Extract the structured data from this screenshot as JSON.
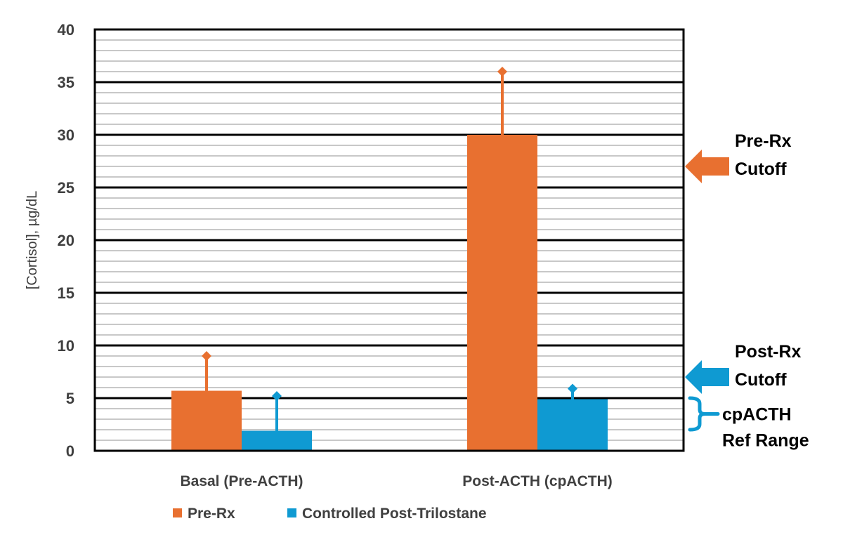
{
  "chart_data": {
    "type": "bar",
    "title": "",
    "xlabel": "",
    "ylabel": "[Cortisol], µg/dL",
    "ylim": [
      0,
      40
    ],
    "y_major_ticks": [
      0,
      5,
      10,
      15,
      20,
      25,
      30,
      35,
      40
    ],
    "y_minor_step": 1,
    "grid": true,
    "legend_position": "bottom",
    "categories": [
      "Basal (Pre-ACTH)",
      "Post-ACTH (cpACTH)"
    ],
    "series": [
      {
        "name": "Pre-Rx",
        "color": "#E87030",
        "values": [
          5.7,
          30.0
        ],
        "error_upper": [
          9.0,
          36.0
        ]
      },
      {
        "name": "Controlled Post-Trilostane",
        "color": "#0F9AD2",
        "values": [
          1.9,
          4.9
        ],
        "error_upper": [
          5.2,
          5.9
        ]
      }
    ],
    "annotations": [
      {
        "type": "arrow",
        "label_lines": [
          "Pre-Rx",
          "Cutoff"
        ],
        "y": 27,
        "color": "#E87030"
      },
      {
        "type": "arrow",
        "label_lines": [
          "Post-Rx",
          "Cutoff"
        ],
        "y": 7,
        "color": "#0F9AD2"
      },
      {
        "type": "bracket",
        "label_lines": [
          "cpACTH",
          "Ref Range"
        ],
        "y_range": [
          2,
          5
        ],
        "color": "#0F9AD2"
      }
    ]
  }
}
